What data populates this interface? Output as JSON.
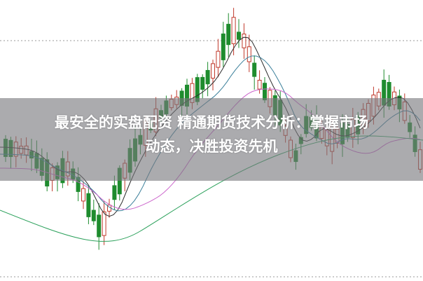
{
  "headline": {
    "line1": "最安全的实盘配资 精通期货技术分析：掌握市场",
    "line2": "动态，决胜投资先机"
  },
  "chart_data": {
    "type": "candlestick",
    "title": "",
    "grid": "dotted horizontal",
    "colors": {
      "up": "#c0392b",
      "down": "#1e8c2e",
      "ma_short": "#2c2c2c",
      "ma_mid": "#3a7f9a",
      "ma_long": "#cc66cc",
      "ma_slow": "#2aa05a"
    }
  }
}
